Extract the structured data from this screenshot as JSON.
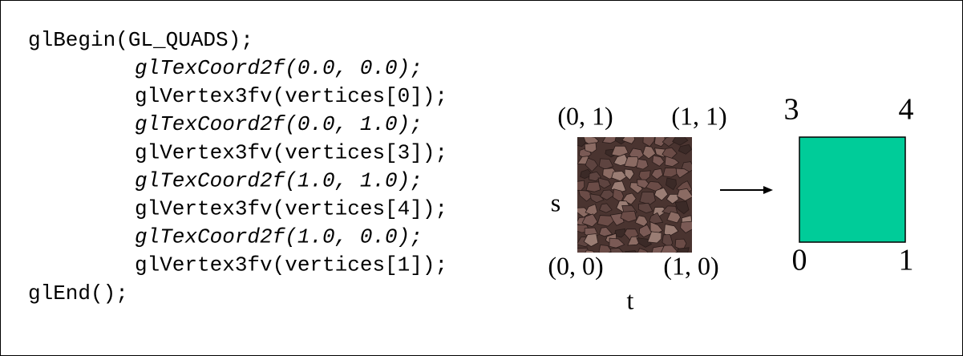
{
  "code": {
    "lines": [
      {
        "text": "glBegin(GL_QUADS);",
        "indent": false,
        "italic": false
      },
      {
        "text": "glTexCoord2f(0.0, 0.0);",
        "indent": true,
        "italic": true
      },
      {
        "text": "glVertex3fv(vertices[0]);",
        "indent": true,
        "italic": false
      },
      {
        "text": "glTexCoord2f(0.0, 1.0);",
        "indent": true,
        "italic": true
      },
      {
        "text": "glVertex3fv(vertices[3]);",
        "indent": true,
        "italic": false
      },
      {
        "text": "glTexCoord2f(1.0, 1.0);",
        "indent": true,
        "italic": true
      },
      {
        "text": "glVertex3fv(vertices[4]);",
        "indent": true,
        "italic": false
      },
      {
        "text": "glTexCoord2f(1.0, 0.0);",
        "indent": true,
        "italic": true
      },
      {
        "text": "glVertex3fv(vertices[1]);",
        "indent": true,
        "italic": false
      },
      {
        "text": "glEnd();",
        "indent": false,
        "italic": false
      }
    ]
  },
  "texture": {
    "top_left": "(0, 1)",
    "top_right": "(1, 1)",
    "bottom_left": "(0, 0)",
    "bottom_right": "(1, 0)",
    "left_axis": "s",
    "bottom_axis": "t"
  },
  "quad": {
    "top_left": "3",
    "top_right": "4",
    "bottom_left": "0",
    "bottom_right": "1",
    "color": "#00cc99"
  }
}
